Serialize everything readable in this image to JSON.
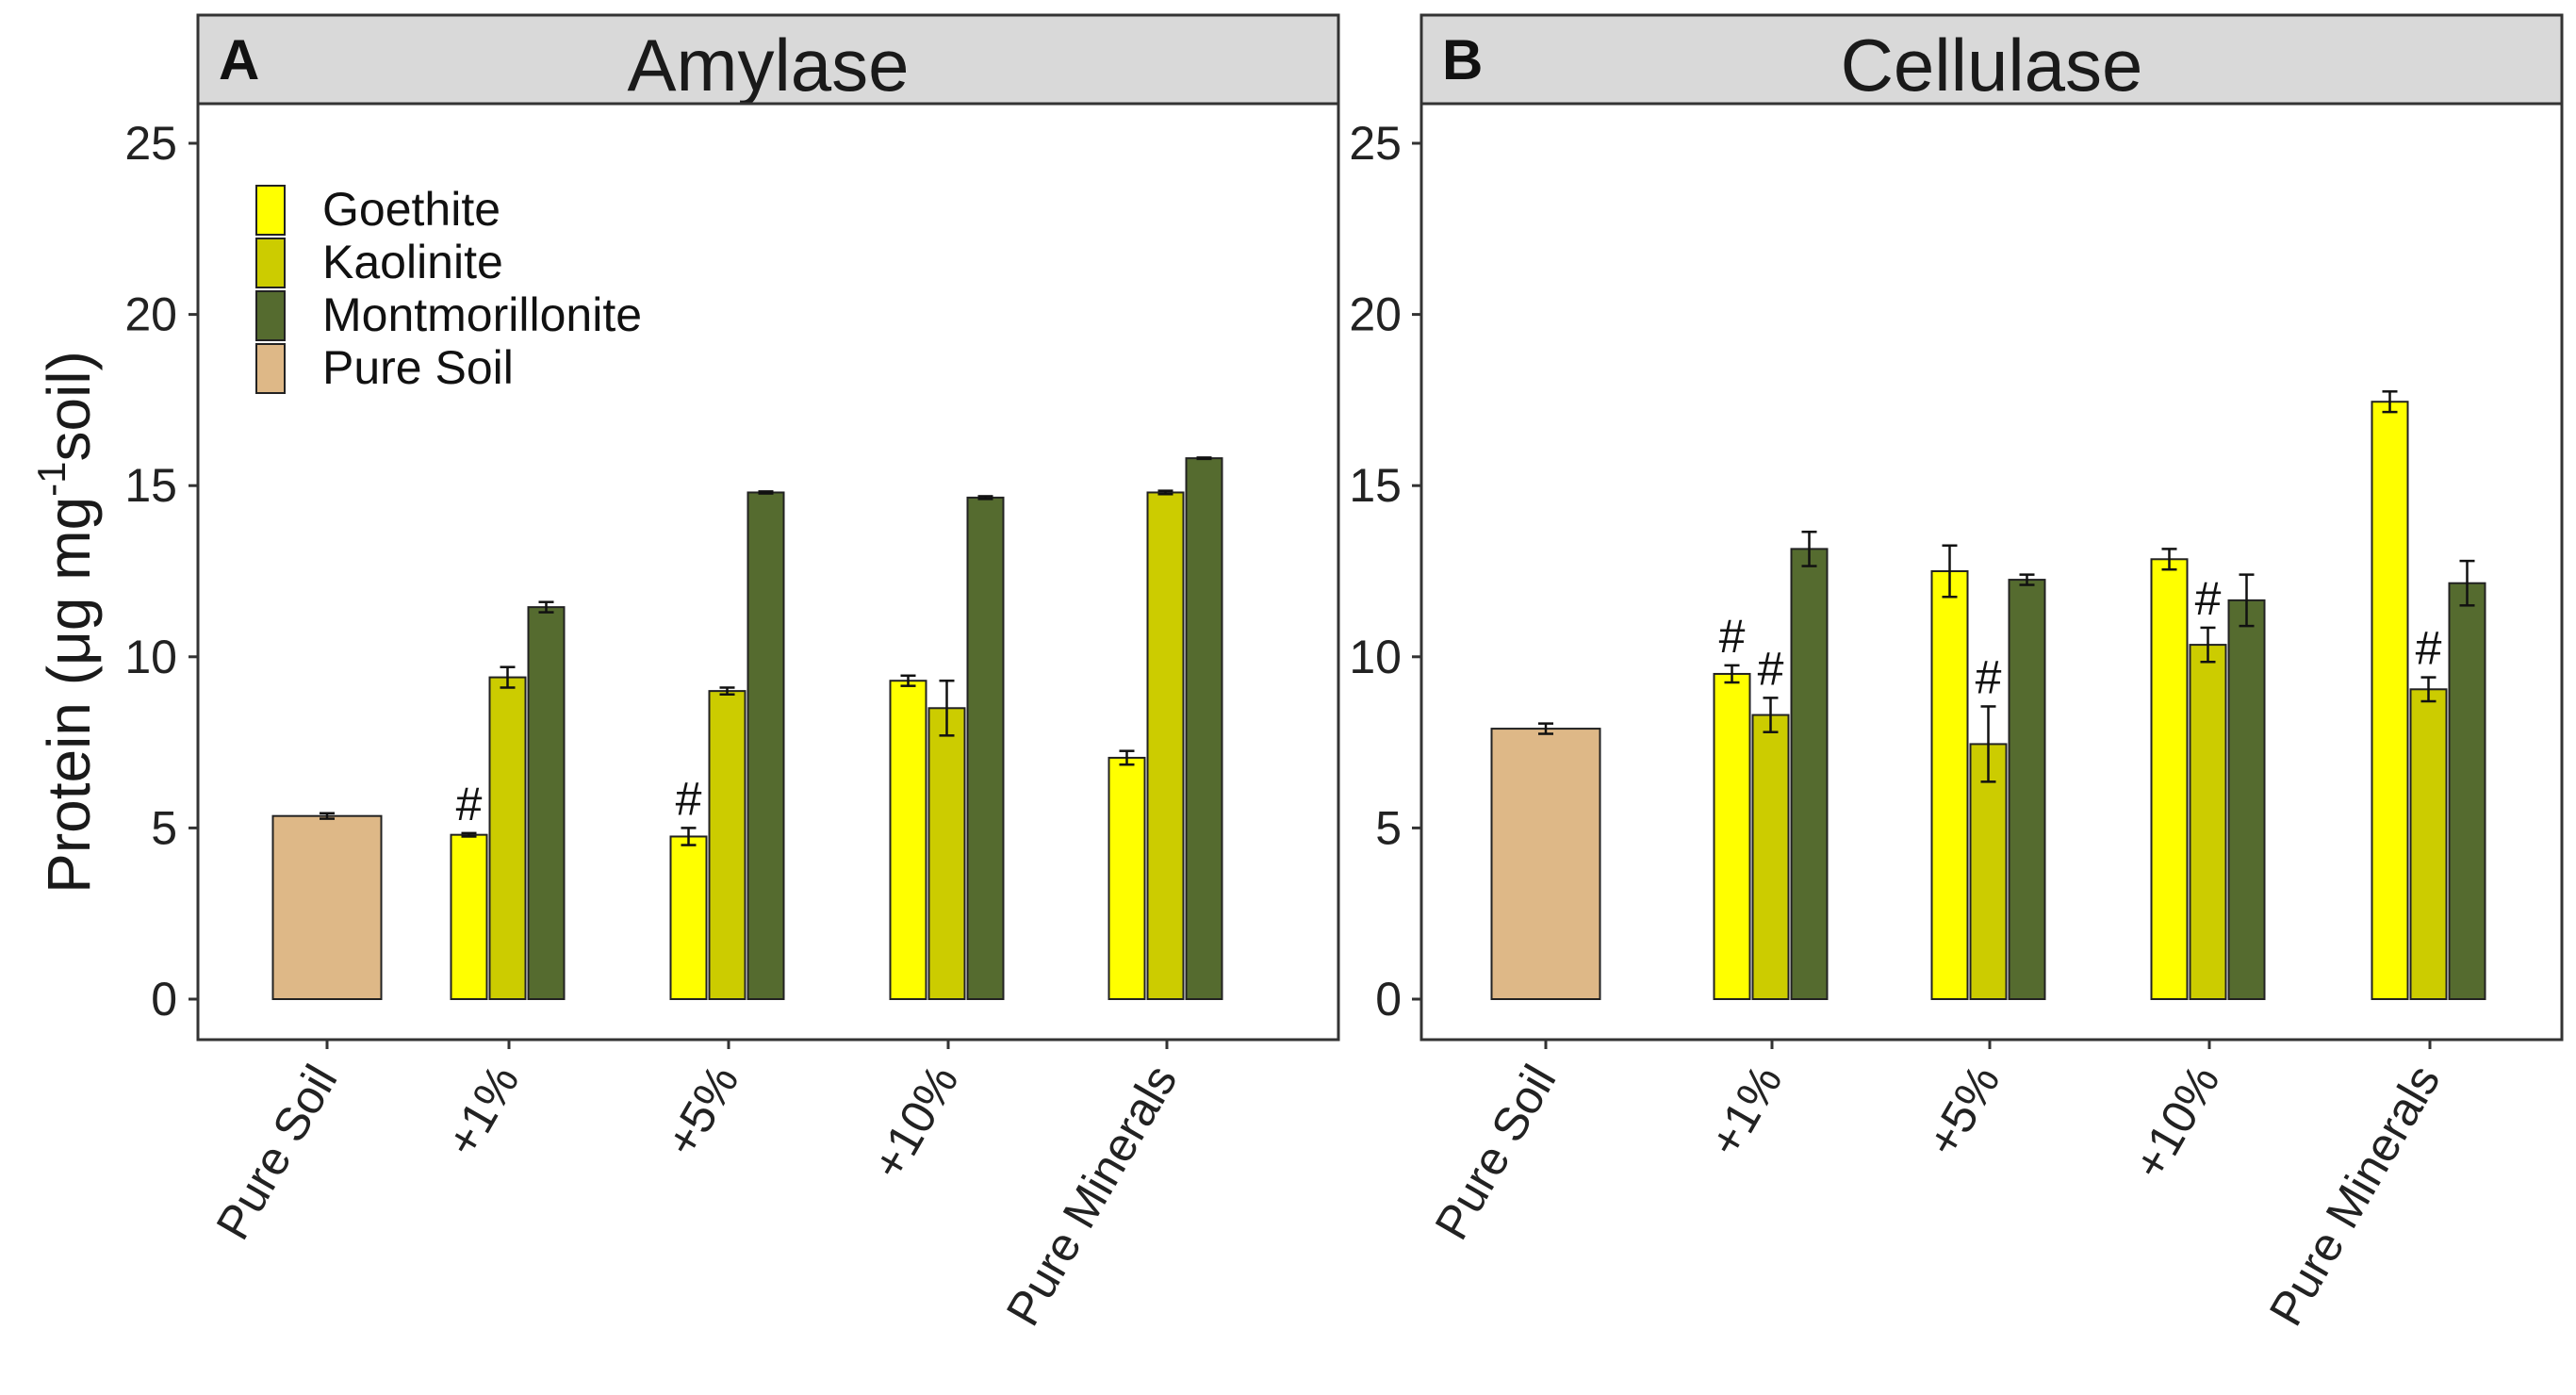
{
  "figure": {
    "ylabel_main": "Protein (μg mg",
    "ylabel_sup": "-1",
    "ylabel_tail": "soil)"
  },
  "colors": {
    "Goethite": "#ffff00",
    "Kaolinite": "#cccc00",
    "Montmorillonite": "#556b2f",
    "Pure Soil": "#deb887",
    "strip_bg": "#d9d9d9",
    "frame": "#333333"
  },
  "legend": {
    "entries": [
      "Goethite",
      "Kaolinite",
      "Montmorillonite",
      "Pure Soil"
    ]
  },
  "chart_data": [
    {
      "type": "bar",
      "panel": "A",
      "title": "Amylase",
      "ylabel": "Protein (μg mg-1 soil)",
      "ylim": [
        0,
        26
      ],
      "yticks": [
        0,
        5,
        10,
        15,
        20,
        25
      ],
      "categories": [
        "Pure Soil",
        "+1%",
        "+5%",
        "+10%",
        "Pure Minerals"
      ],
      "series": [
        {
          "name": "Pure Soil",
          "values": [
            5.35,
            null,
            null,
            null,
            null
          ],
          "errors": [
            0.08,
            null,
            null,
            null,
            null
          ]
        },
        {
          "name": "Goethite",
          "values": [
            null,
            4.8,
            4.75,
            9.3,
            7.05
          ],
          "errors": [
            null,
            0.05,
            0.25,
            0.15,
            0.2
          ]
        },
        {
          "name": "Kaolinite",
          "values": [
            null,
            9.4,
            9.0,
            8.5,
            14.8
          ],
          "errors": [
            null,
            0.3,
            0.1,
            0.8,
            0.05
          ]
        },
        {
          "name": "Montmorillonite",
          "values": [
            null,
            11.45,
            14.8,
            14.65,
            15.8
          ],
          "errors": [
            null,
            0.15,
            0.03,
            0.04,
            0.02
          ]
        }
      ],
      "annotations": [
        {
          "text": "#",
          "category": "+1%",
          "series": "Goethite"
        },
        {
          "text": "#",
          "category": "+5%",
          "series": "Goethite"
        }
      ]
    },
    {
      "type": "bar",
      "panel": "B",
      "title": "Cellulase",
      "ylabel": "Protein (μg mg-1 soil)",
      "ylim": [
        0,
        26
      ],
      "yticks": [
        0,
        5,
        10,
        15,
        20,
        25
      ],
      "categories": [
        "Pure Soil",
        "+1%",
        "+5%",
        "+10%",
        "Pure Minerals"
      ],
      "series": [
        {
          "name": "Pure Soil",
          "values": [
            7.9,
            null,
            null,
            null,
            null
          ],
          "errors": [
            0.15,
            null,
            null,
            null,
            null
          ]
        },
        {
          "name": "Goethite",
          "values": [
            null,
            9.5,
            12.5,
            12.85,
            17.45
          ],
          "errors": [
            null,
            0.25,
            0.75,
            0.3,
            0.3
          ]
        },
        {
          "name": "Kaolinite",
          "values": [
            null,
            8.3,
            7.45,
            10.35,
            9.05
          ],
          "errors": [
            null,
            0.5,
            1.1,
            0.5,
            0.35
          ]
        },
        {
          "name": "Montmorillonite",
          "values": [
            null,
            13.15,
            12.25,
            11.65,
            12.15
          ],
          "errors": [
            null,
            0.5,
            0.15,
            0.75,
            0.65
          ]
        }
      ],
      "annotations": [
        {
          "text": "#",
          "category": "+1%",
          "series": "Goethite"
        },
        {
          "text": "#",
          "category": "+1%",
          "series": "Kaolinite"
        },
        {
          "text": "#",
          "category": "+5%",
          "series": "Kaolinite"
        },
        {
          "text": "#",
          "category": "+10%",
          "series": "Kaolinite"
        },
        {
          "text": "#",
          "category": "Pure Minerals",
          "series": "Kaolinite"
        }
      ]
    }
  ]
}
